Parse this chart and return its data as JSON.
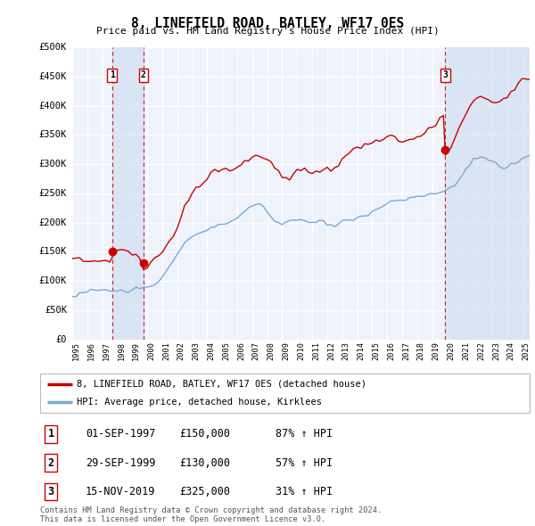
{
  "title": "8, LINEFIELD ROAD, BATLEY, WF17 0ES",
  "subtitle": "Price paid vs. HM Land Registry's House Price Index (HPI)",
  "ylabel_ticks": [
    "£0",
    "£50K",
    "£100K",
    "£150K",
    "£200K",
    "£250K",
    "£300K",
    "£350K",
    "£400K",
    "£450K",
    "£500K"
  ],
  "ytick_vals": [
    0,
    50000,
    100000,
    150000,
    200000,
    250000,
    300000,
    350000,
    400000,
    450000,
    500000
  ],
  "ylim": [
    0,
    500000
  ],
  "xlim_start": 1995.0,
  "xlim_end": 2025.5,
  "sale_dates": [
    1997.667,
    1999.75,
    2019.875
  ],
  "sale_prices": [
    150000,
    130000,
    325000
  ],
  "sale_labels": [
    "1",
    "2",
    "3"
  ],
  "legend_line1": "8, LINEFIELD ROAD, BATLEY, WF17 0ES (detached house)",
  "legend_line2": "HPI: Average price, detached house, Kirklees",
  "table_rows": [
    [
      "1",
      "01-SEP-1997",
      "£150,000",
      "87% ↑ HPI"
    ],
    [
      "2",
      "29-SEP-1999",
      "£130,000",
      "57% ↑ HPI"
    ],
    [
      "3",
      "15-NOV-2019",
      "£325,000",
      "31% ↑ HPI"
    ]
  ],
  "footer": "Contains HM Land Registry data © Crown copyright and database right 2024.\nThis data is licensed under the Open Government Licence v3.0.",
  "red_line_color": "#cc0000",
  "blue_line_color": "#7aaad0",
  "bg_color": "#eef2fb",
  "grid_color": "#ffffff",
  "vline_color": "#cc0000",
  "highlight_color": "#ccdcf0"
}
